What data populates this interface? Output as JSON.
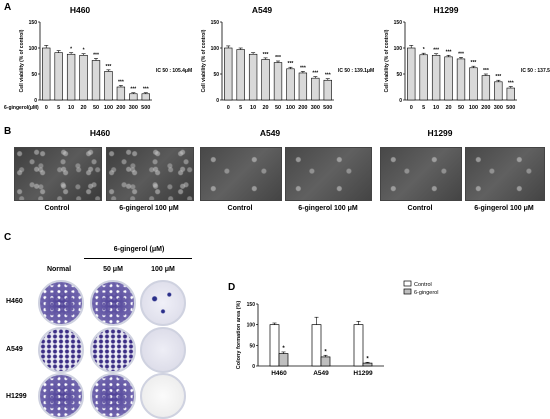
{
  "panels": {
    "A": "A",
    "B": "B",
    "C": "C",
    "D": "D"
  },
  "panelA": {
    "dose_axis_label": "6-gingerol(μM)",
    "ylabel": "Cell viability (% of control)"
  },
  "panelB": {
    "titles": [
      "H460",
      "A549",
      "H1299"
    ],
    "captions": [
      "Control",
      "6-gingerol 100 μM",
      "Control",
      "6-gingerol 100 μM",
      "Control",
      "6-gingerol 100 μM"
    ]
  },
  "panelC": {
    "group_header": "6-gingerol (μM)",
    "col_labels": [
      "Normal",
      "50 μM",
      "100 μM"
    ],
    "row_labels": [
      "H460",
      "A549",
      "H1299"
    ]
  },
  "chart_data": [
    {
      "type": "bar",
      "title": "H460",
      "categories": [
        "0",
        "5",
        "10",
        "20",
        "50",
        "100",
        "200",
        "300",
        "500"
      ],
      "values": [
        100,
        91,
        88,
        86,
        76,
        55,
        25,
        12,
        12
      ],
      "errors": [
        5,
        4,
        3,
        3,
        4,
        3,
        3,
        2,
        2
      ],
      "significance": [
        "",
        "",
        "*",
        "*",
        "***",
        "***",
        "***",
        "***",
        "***"
      ],
      "ylim": [
        0,
        150
      ],
      "yticks": [
        0,
        50,
        100,
        150
      ],
      "ylabel": "Cell viability (% of control)",
      "xlabel": "6-gingerol(μM)",
      "annotation": "IC 50 : 105.4μM"
    },
    {
      "type": "bar",
      "title": "A549",
      "categories": [
        "0",
        "5",
        "10",
        "20",
        "50",
        "100",
        "200",
        "300",
        "500"
      ],
      "values": [
        100,
        97,
        88,
        78,
        72,
        60,
        52,
        42,
        38
      ],
      "errors": [
        4,
        3,
        3,
        3,
        3,
        3,
        3,
        3,
        3
      ],
      "significance": [
        "",
        "",
        "",
        "***",
        "***",
        "***",
        "***",
        "***",
        "***"
      ],
      "ylim": [
        0,
        150
      ],
      "yticks": [
        0,
        50,
        100,
        150
      ],
      "ylabel": "Cell viability (% of control)",
      "xlabel": "",
      "annotation": "IC 50 : 139.1μM"
    },
    {
      "type": "bar",
      "title": "H1299",
      "categories": [
        "0",
        "5",
        "10",
        "20",
        "50",
        "100",
        "200",
        "300",
        "500"
      ],
      "values": [
        100,
        87,
        86,
        83,
        79,
        62,
        47,
        35,
        23
      ],
      "errors": [
        5,
        3,
        3,
        3,
        3,
        3,
        3,
        3,
        3
      ],
      "significance": [
        "",
        "*",
        "***",
        "***",
        "***",
        "***",
        "***",
        "***",
        "***"
      ],
      "ylim": [
        0,
        150
      ],
      "yticks": [
        0,
        50,
        100,
        150
      ],
      "ylabel": "Cell viability (% of control)",
      "xlabel": "",
      "annotation": "IC 50 : 137.5μM"
    },
    {
      "type": "bar",
      "title": "",
      "categories": [
        "H460",
        "A549",
        "H1299"
      ],
      "series": [
        {
          "name": "Control",
          "values": [
            100,
            100,
            100
          ],
          "errors": [
            4,
            18,
            8
          ]
        },
        {
          "name": "6-gingerol",
          "values": [
            30,
            22,
            7
          ],
          "errors": [
            4,
            4,
            2
          ]
        }
      ],
      "significance": [
        "*",
        "*",
        "*"
      ],
      "ylim": [
        0,
        150
      ],
      "yticks": [
        0,
        50,
        100,
        150
      ],
      "ylabel": "Colony formation area (%)",
      "legend": "top-right"
    }
  ]
}
